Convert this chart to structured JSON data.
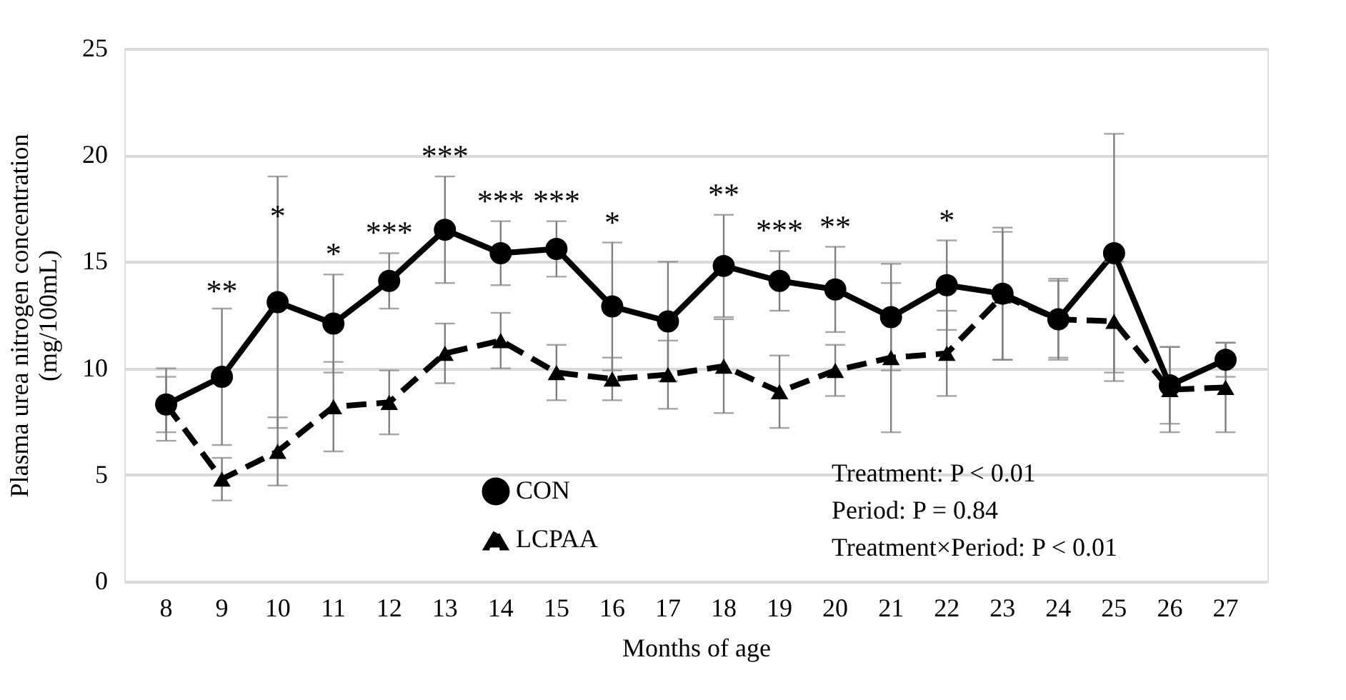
{
  "chart_data": {
    "type": "line",
    "xlabel": "Months of age",
    "ylabel": "Plasma urea nitrogen concentration\n(mg/100mL)",
    "categories": [
      "8",
      "9",
      "10",
      "11",
      "12",
      "13",
      "14",
      "15",
      "16",
      "17",
      "18",
      "19",
      "20",
      "21",
      "22",
      "23",
      "24",
      "25",
      "26",
      "27"
    ],
    "ylim": [
      0,
      25
    ],
    "yticks": [
      0,
      5,
      10,
      15,
      20,
      25
    ],
    "grid": "y",
    "legend": "bottom",
    "series": [
      {
        "name": "CON",
        "color": "#000000",
        "marker": "circle",
        "line_style": "solid",
        "values": [
          8.3,
          9.6,
          13.1,
          12.1,
          14.1,
          16.5,
          15.4,
          15.6,
          12.9,
          12.2,
          14.8,
          14.1,
          13.7,
          12.4,
          13.9,
          13.5,
          12.3,
          15.4,
          9.2,
          10.4
        ],
        "errors": [
          1.7,
          3.2,
          5.9,
          2.3,
          1.3,
          2.5,
          1.5,
          1.3,
          3.0,
          2.8,
          2.4,
          1.4,
          2.0,
          2.5,
          2.1,
          3.1,
          1.9,
          5.6,
          1.8,
          0.8
        ]
      },
      {
        "name": "LCPAA",
        "color": "#000000",
        "marker": "triangle",
        "line_style": "dashed",
        "values": [
          8.3,
          4.8,
          6.1,
          8.2,
          8.4,
          10.7,
          11.3,
          9.8,
          9.5,
          9.7,
          10.1,
          8.9,
          9.9,
          10.5,
          10.7,
          13.4,
          12.3,
          12.2,
          9.0,
          9.1
        ],
        "errors": [
          1.3,
          1.0,
          1.6,
          2.1,
          1.5,
          1.4,
          1.3,
          1.3,
          1.0,
          1.6,
          2.2,
          1.7,
          1.2,
          3.5,
          2.0,
          3.0,
          1.8,
          2.8,
          2.0,
          2.1
        ]
      }
    ],
    "annotations": [
      {
        "text": "**",
        "x": "9",
        "y": 9.6
      },
      {
        "text": "*",
        "x": "10",
        "y": 13.1
      },
      {
        "text": "*",
        "x": "11",
        "y": 12.1
      },
      {
        "text": "***",
        "x": "12",
        "y": 14.1
      },
      {
        "text": "***",
        "x": "13",
        "y": 16.5
      },
      {
        "text": "***",
        "x": "14",
        "y": 15.4
      },
      {
        "text": "***",
        "x": "15",
        "y": 15.6
      },
      {
        "text": "*",
        "x": "16",
        "y": 12.9
      },
      {
        "text": "**",
        "x": "18",
        "y": 14.8
      },
      {
        "text": "***",
        "x": "19",
        "y": 14.1
      },
      {
        "text": "**",
        "x": "20",
        "y": 13.7
      },
      {
        "text": "*",
        "x": "22",
        "y": 13.9
      },
      "Treatment: P < 0.01",
      "Period: P = 0.84",
      "Treatment×Period: P < 0.01"
    ]
  }
}
